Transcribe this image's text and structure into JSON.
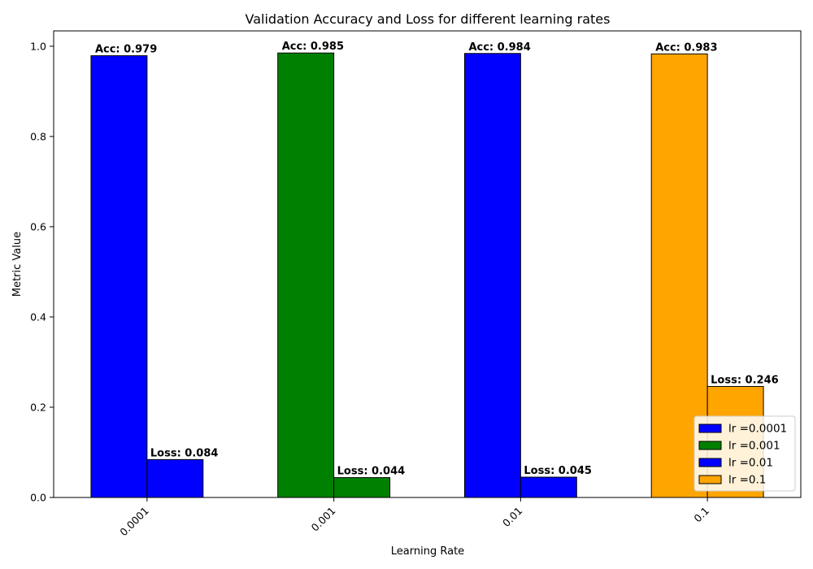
{
  "chart_data": {
    "type": "bar",
    "title": "Validation Accuracy and Loss for different learning rates",
    "xlabel": "Learning Rate",
    "ylabel": "Metric Value",
    "categories": [
      "0.0001",
      "0.001",
      "0.01",
      "0.1"
    ],
    "ylim": [
      0,
      1.034
    ],
    "yticks": [
      0.0,
      0.2,
      0.4,
      0.6,
      0.8,
      1.0
    ],
    "ytick_labels": [
      "0.0",
      "0.2",
      "0.4",
      "0.6",
      "0.8",
      "1.0"
    ],
    "grid": false,
    "legend_position": "lower right",
    "series": [
      {
        "name": "Accuracy",
        "values": [
          0.979,
          0.985,
          0.984,
          0.983
        ],
        "labels": [
          "Acc: 0.979",
          "Acc: 0.985",
          "Acc: 0.984",
          "Acc: 0.983"
        ]
      },
      {
        "name": "Loss",
        "values": [
          0.084,
          0.044,
          0.045,
          0.246
        ],
        "labels": [
          "Loss: 0.084",
          "Loss: 0.044",
          "Loss: 0.045",
          "Loss: 0.246"
        ]
      }
    ],
    "bar_colors": [
      "#0000ff",
      "#008000",
      "#0000ff",
      "#ffa500"
    ],
    "legend": [
      {
        "label": "lr =0.0001",
        "color": "#0000ff"
      },
      {
        "label": "lr =0.001",
        "color": "#008000"
      },
      {
        "label": "lr =0.01",
        "color": "#0000ff"
      },
      {
        "label": "lr =0.1",
        "color": "#ffa500"
      }
    ]
  }
}
